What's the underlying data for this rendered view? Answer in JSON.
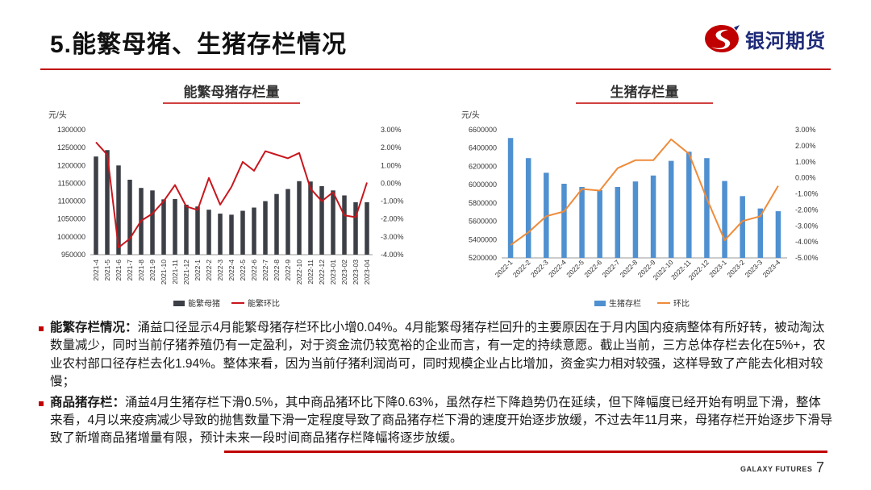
{
  "header": {
    "title": "5.能繁母猪、生猪存栏情况",
    "logo_text": "银河期货",
    "brand_color": "#c00000",
    "logo_blue": "#1e2a78"
  },
  "bullets": [
    {
      "head": "能繁存栏情况：",
      "text": "涌益口径显示4月能繁母猪存栏环比小增0.04%。4月能繁母猪存栏回升的主要原因在于月内国内疫病整体有所好转，被动淘汰数量减少，同时当前仔猪养殖仍有一定盈利，对于资金流仍较宽裕的企业而言，有一定的持续意愿。截止当前，三方总体存栏去化在5%+，农业农村部口径存栏去化1.94%。整体来看，因为当前仔猪利润尚可，同时规模企业占比增加，资金实力相对较强，这样导致了产能去化相对较慢；"
    },
    {
      "head": "商品猪存栏：",
      "text": "涌益4月生猪存栏下滑0.5%，其中商品猪环比下降0.63%，虽然存栏下降趋势仍在延续，但下降幅度已经开始有明显下滑，整体来看，4月以来疫病减少导致的抛售数量下滑一定程度导致了商品猪存栏下滑的速度开始逐步放缓，不过去年11月来，母猪存栏开始逐步下滑导致了新增商品猪增量有限，预计未来一段时间商品猪存栏降幅将逐步放缓。"
    }
  ],
  "footer": {
    "brand": "GALAXY FUTURES",
    "page": "7"
  },
  "chart_data": [
    {
      "type": "bar",
      "title": "能繁母猪存栏量",
      "unit_label": "元/头",
      "categories": [
        "2021-4",
        "2021-5",
        "2021-6",
        "2021-7",
        "2021-8",
        "2021-9",
        "2021-10",
        "2021-11",
        "2021-12",
        "2022-1",
        "2022-2",
        "2022-3",
        "2022-4",
        "2022-5",
        "2022-6",
        "2022-7",
        "2022-8",
        "2022-9",
        "2022-10",
        "2022-11",
        "2022-12",
        "2023-01",
        "2023-02",
        "2023-03",
        "2023-04"
      ],
      "series": [
        {
          "name": "能繁母猪",
          "type": "bar",
          "axis": "left",
          "color": "#3c3f45",
          "values": [
            1225000,
            1243000,
            1200000,
            1160000,
            1137000,
            1130000,
            1105000,
            1106000,
            1090000,
            1085000,
            1076000,
            1065000,
            1062000,
            1073000,
            1082000,
            1100000,
            1120000,
            1134000,
            1156000,
            1155000,
            1142000,
            1130000,
            1116000,
            1097000,
            1097000
          ]
        },
        {
          "name": "能繁环比",
          "type": "line",
          "axis": "right",
          "color": "#c8161d",
          "values": [
            2.3,
            1.6,
            -3.6,
            -3.1,
            -2.1,
            -1.7,
            -1.0,
            -0.1,
            -1.3,
            -1.5,
            0.3,
            -1.2,
            -0.2,
            1.2,
            0.7,
            1.8,
            1.6,
            1.4,
            1.7,
            -0.3,
            -1.0,
            -0.5,
            -1.8,
            -1.9,
            0.04
          ]
        }
      ],
      "ylim_left": [
        950000,
        1300000
      ],
      "yticks_left": [
        950000,
        1000000,
        1050000,
        1100000,
        1150000,
        1200000,
        1250000,
        1300000
      ],
      "ylim_right": [
        -4,
        3
      ],
      "yticks_right_labels": [
        "3.00%",
        "2.00%",
        "1.00%",
        "0.00%",
        "-1.00%",
        "-2.00%",
        "-3.00%",
        "-4.00%"
      ],
      "legend": "bottom"
    },
    {
      "type": "bar",
      "title": "生猪存栏量",
      "unit_label": "元/头",
      "categories": [
        "2022-1",
        "2022-2",
        "2022-3",
        "2022-4",
        "2022-5",
        "2022-6",
        "2022-7",
        "2022-8",
        "2022-9",
        "2022-10",
        "2022-11",
        "2022-12",
        "2023-1",
        "2023-2",
        "2023-3",
        "2023-4"
      ],
      "series": [
        {
          "name": "生猪存栏",
          "type": "bar",
          "axis": "left",
          "color": "#4f90d0",
          "values": [
            6510000,
            6290000,
            6130000,
            6010000,
            5975000,
            5940000,
            5975000,
            6035000,
            6100000,
            6260000,
            6360000,
            6290000,
            6040000,
            5875000,
            5740000,
            5710000
          ]
        },
        {
          "name": "环比",
          "type": "line",
          "axis": "right",
          "color": "#ef8b3a",
          "values": [
            -4.2,
            -3.4,
            -2.4,
            -2.1,
            -0.7,
            -0.8,
            0.6,
            1.1,
            1.1,
            2.4,
            1.5,
            -1.3,
            -3.9,
            -2.7,
            -2.4,
            -0.5
          ]
        }
      ],
      "ylim_left": [
        5200000,
        6600000
      ],
      "yticks_left": [
        5200000,
        5400000,
        5600000,
        5800000,
        6000000,
        6200000,
        6400000,
        6600000
      ],
      "ylim_right": [
        -5,
        3
      ],
      "yticks_right_labels": [
        "3.00%",
        "2.00%",
        "1.00%",
        "0.00%",
        "-1.00%",
        "-2.00%",
        "-3.00%",
        "-4.00%",
        "-5.00%"
      ],
      "legend": "bottom"
    }
  ]
}
